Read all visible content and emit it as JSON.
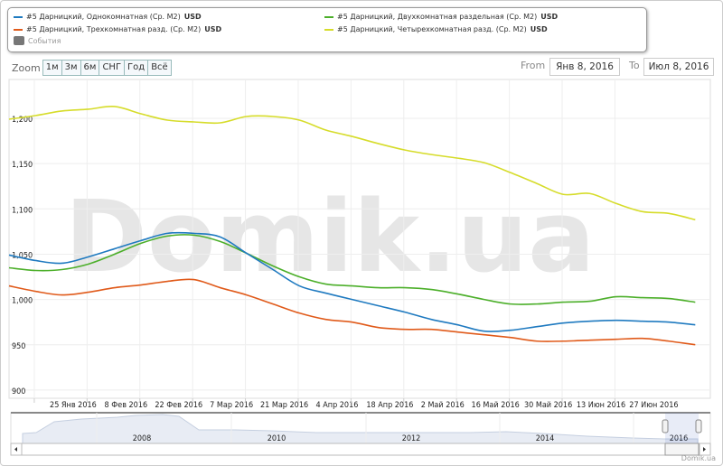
{
  "legend": {
    "items": [
      {
        "label": "#5 Дарницкий, Однокомнатная (Ср. M2)",
        "unit": "USD",
        "color": "#1f7ac0"
      },
      {
        "label": "#5 Дарницкий, Двухкомнатная раздельная (Ср. M2)",
        "unit": "USD",
        "color": "#4caf2a"
      },
      {
        "label": "#5 Дарницкий, Трехкомнатная разд. (Ср. M2)",
        "unit": "USD",
        "color": "#e05a1a"
      },
      {
        "label": "#5 Дарницкий, Четырехкомнатная разд. (Ср. M2)",
        "unit": "USD",
        "color": "#d6dc2a"
      }
    ],
    "events_label": "События"
  },
  "zoom": {
    "label": "Zoom",
    "buttons": [
      "1м",
      "3м",
      "6м",
      "СНГ",
      "Год",
      "Всё"
    ]
  },
  "range": {
    "from_label": "From",
    "from": "Янв 8, 2016",
    "to_label": "To",
    "to": "Июл 8, 2016"
  },
  "watermark": "Domik.ua",
  "credits": "Domik.ua",
  "navigator": {
    "years": [
      "2008",
      "2010",
      "2012",
      "2014",
      "2016"
    ]
  },
  "chart_data": {
    "type": "line",
    "title": "",
    "x_days_from_start": [
      0,
      7,
      14,
      21,
      28,
      35,
      42,
      49,
      56,
      63,
      70,
      77,
      84,
      91,
      98,
      105,
      112,
      119,
      126,
      133,
      140,
      147,
      154,
      161,
      168,
      175,
      182
    ],
    "xlim": [
      0,
      186
    ],
    "x_ticks": [
      {
        "day": 17,
        "label": "25 Янв 2016"
      },
      {
        "day": 31,
        "label": "8 Фев 2016"
      },
      {
        "day": 45,
        "label": "22 Фев 2016"
      },
      {
        "day": 59,
        "label": "7 Мар 2016"
      },
      {
        "day": 73,
        "label": "21 Мар 2016"
      },
      {
        "day": 87,
        "label": "4 Апр 2016"
      },
      {
        "day": 101,
        "label": "18 Апр 2016"
      },
      {
        "day": 115,
        "label": "2 Май 2016"
      },
      {
        "day": 129,
        "label": "16 Май 2016"
      },
      {
        "day": 143,
        "label": "30 Май 2016"
      },
      {
        "day": 157,
        "label": "13 Июн 2016"
      },
      {
        "day": 171,
        "label": "27 Июн 2016"
      }
    ],
    "ylim": [
      900,
      1250
    ],
    "y_ticks": [
      900,
      950,
      "1,000",
      "1,050",
      "1,100",
      "1,150",
      "1,200"
    ],
    "series": [
      {
        "name": "#5 Дарницкий, Четырехкомнатная разд. (Ср. M2) USD",
        "color": "#d6dc2a",
        "values": [
          1199,
          1203,
          1208,
          1210,
          1213,
          1205,
          1198,
          1196,
          1195,
          1202,
          1202,
          1198,
          1187,
          1180,
          1172,
          1165,
          1160,
          1156,
          1151,
          1140,
          1128,
          1116,
          1117,
          1106,
          1097,
          1095,
          1088
        ]
      },
      {
        "name": "#5 Дарницкий, Двухкомнатная раздельная (Ср. M2) USD",
        "color": "#4caf2a",
        "values": [
          1035,
          1032,
          1033,
          1039,
          1050,
          1062,
          1070,
          1071,
          1064,
          1051,
          1037,
          1025,
          1017,
          1015,
          1013,
          1013,
          1011,
          1006,
          1000,
          995,
          995,
          997,
          998,
          1003,
          1002,
          1001,
          997
        ]
      },
      {
        "name": "#5 Дарницкий, Однокомнатная (Ср. M2) USD",
        "color": "#1f7ac0",
        "values": [
          1049,
          1043,
          1040,
          1047,
          1056,
          1065,
          1073,
          1073,
          1069,
          1051,
          1033,
          1015,
          1007,
          1000,
          993,
          986,
          978,
          972,
          965,
          966,
          970,
          974,
          976,
          977,
          976,
          975,
          972
        ]
      },
      {
        "name": "#5 Дарницкий, Трехкомнатная разд. (Ср. M2) USD",
        "color": "#e05a1a",
        "values": [
          1015,
          1009,
          1005,
          1008,
          1013,
          1016,
          1020,
          1022,
          1013,
          1005,
          995,
          985,
          978,
          975,
          969,
          967,
          967,
          964,
          961,
          958,
          954,
          954,
          955,
          956,
          957,
          954,
          950
        ]
      }
    ]
  }
}
